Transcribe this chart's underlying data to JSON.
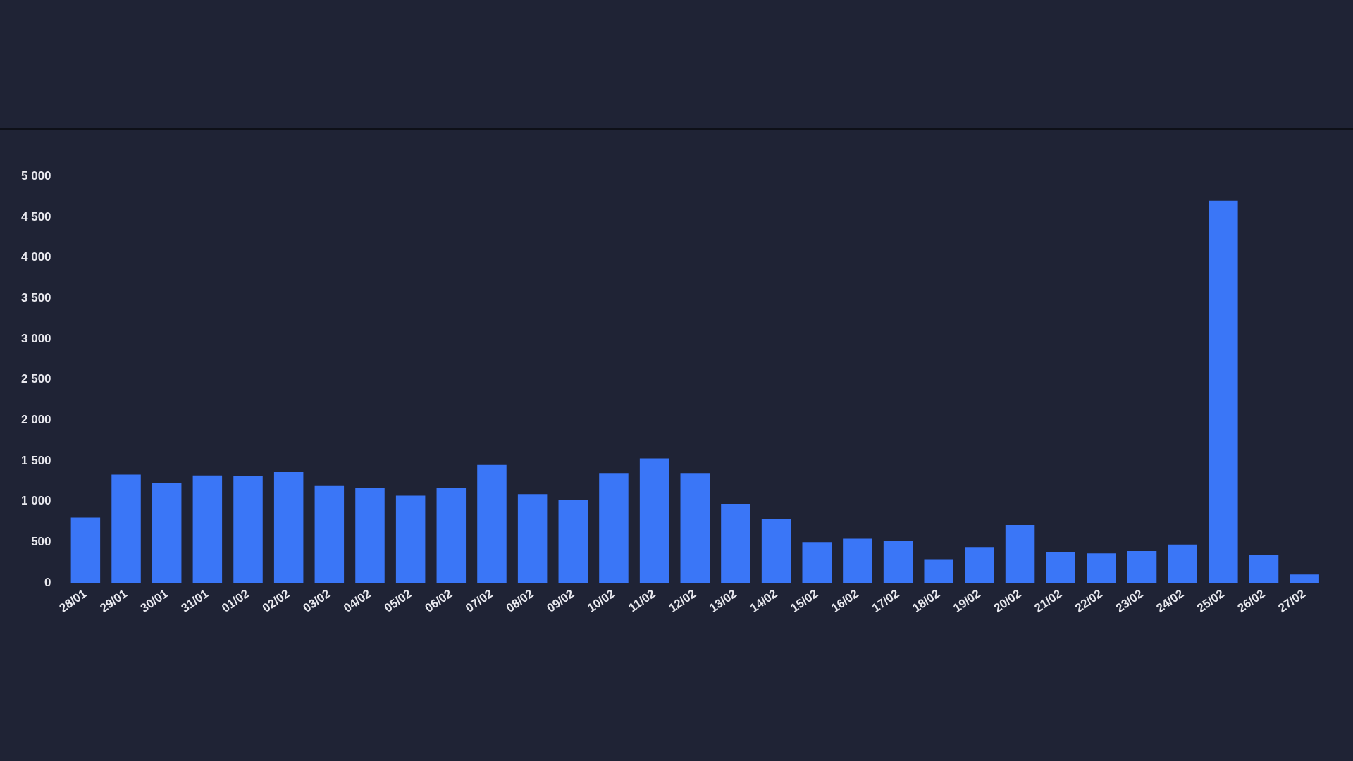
{
  "chart_data": {
    "type": "bar",
    "categories": [
      "28/01",
      "29/01",
      "30/01",
      "31/01",
      "01/02",
      "02/02",
      "03/02",
      "04/02",
      "05/02",
      "06/02",
      "07/02",
      "08/02",
      "09/02",
      "10/02",
      "11/02",
      "12/02",
      "13/02",
      "14/02",
      "15/02",
      "16/02",
      "17/02",
      "18/02",
      "19/02",
      "20/02",
      "21/02",
      "22/02",
      "23/02",
      "24/02",
      "25/02",
      "26/02",
      "27/02"
    ],
    "values": [
      800,
      1330,
      1230,
      1320,
      1310,
      1360,
      1190,
      1170,
      1070,
      1160,
      1450,
      1090,
      1020,
      1350,
      1530,
      1350,
      970,
      780,
      500,
      540,
      510,
      280,
      430,
      710,
      380,
      360,
      390,
      470,
      4700,
      340,
      100
    ],
    "color": "#3a76f7",
    "ylim": [
      0,
      5000
    ],
    "yticks": [
      {
        "value": 0,
        "label": "0"
      },
      {
        "value": 500,
        "label": "500"
      },
      {
        "value": 1000,
        "label": "1 000"
      },
      {
        "value": 1500,
        "label": "1 500"
      },
      {
        "value": 2000,
        "label": "2 000"
      },
      {
        "value": 2500,
        "label": "2 500"
      },
      {
        "value": 3000,
        "label": "3 000"
      },
      {
        "value": 3500,
        "label": "3 500"
      },
      {
        "value": 4000,
        "label": "4 000"
      },
      {
        "value": 4500,
        "label": "4 500"
      },
      {
        "value": 5000,
        "label": "5 000"
      }
    ],
    "grid": false,
    "legend": false
  }
}
